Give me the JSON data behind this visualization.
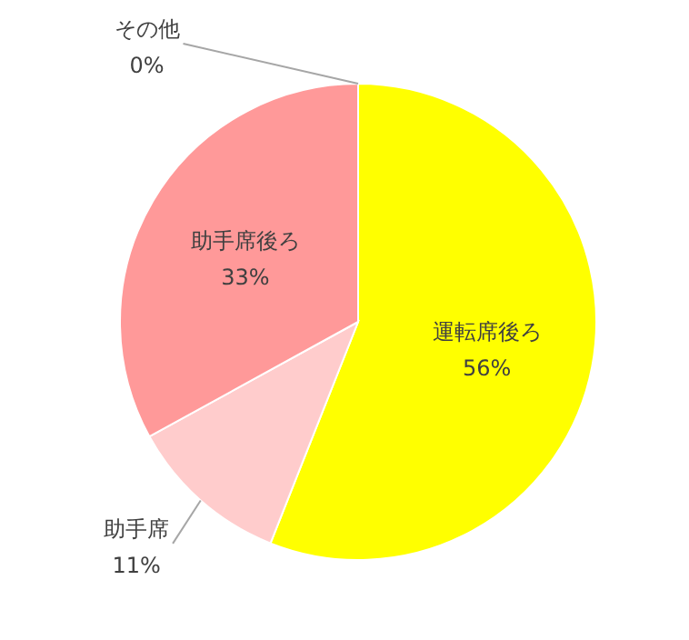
{
  "chart_data": {
    "type": "pie",
    "categories": [
      "運転席後ろ",
      "助手席",
      "助手席後ろ",
      "その他"
    ],
    "values": [
      56,
      11,
      33,
      0
    ],
    "colors": [
      "#ffff00",
      "#ffcccc",
      "#ff9999",
      "#ff6666"
    ],
    "value_labels": [
      "56%",
      "11%",
      "33%",
      "0%"
    ]
  }
}
